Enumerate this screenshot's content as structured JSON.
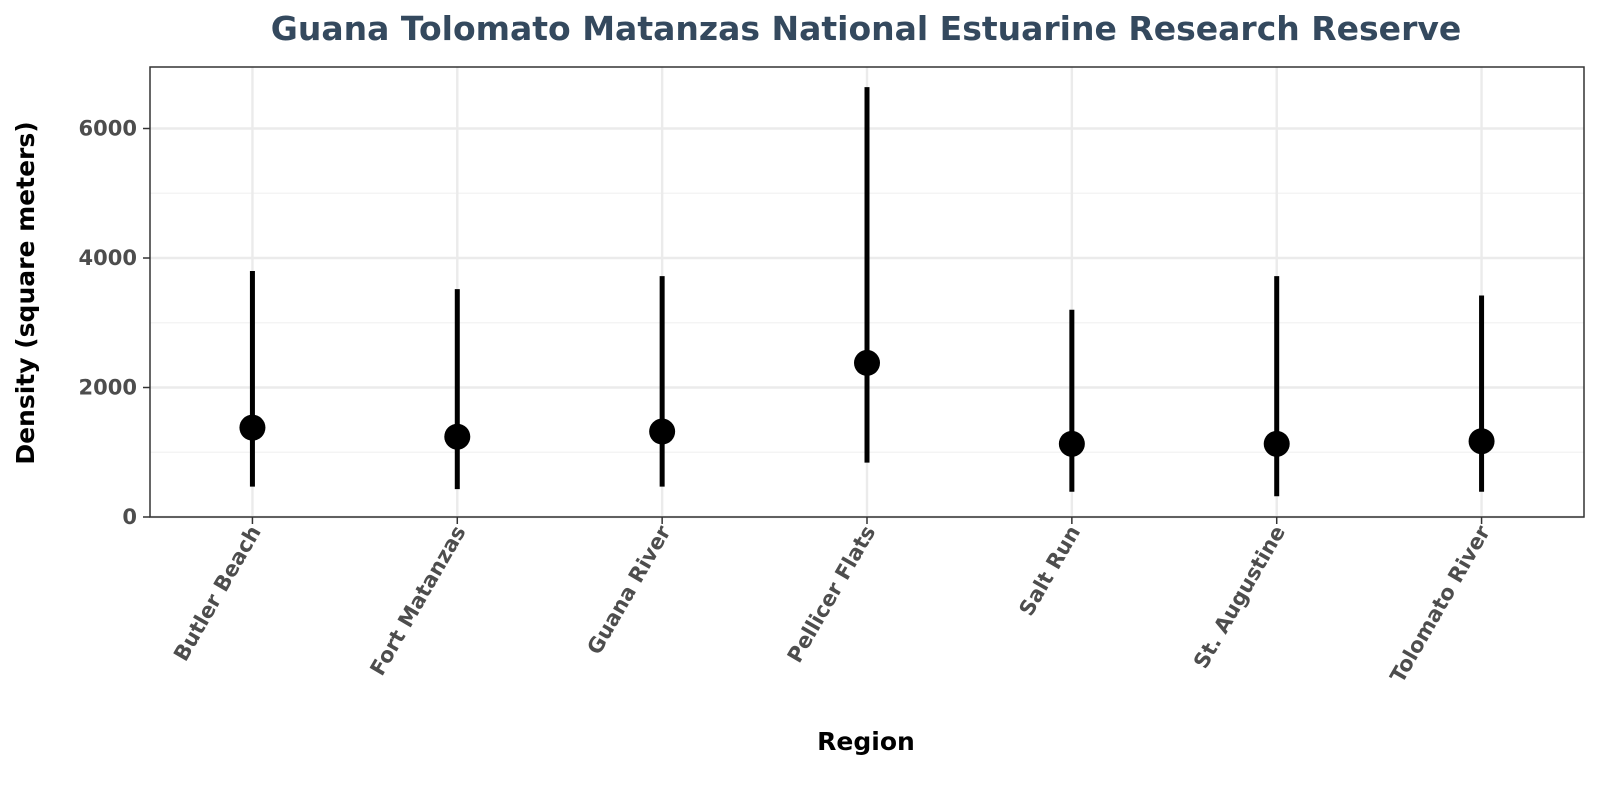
{
  "chart_data": {
    "type": "scatter",
    "title": "Guana Tolomato Matanzas National Estuarine Research Reserve",
    "xlabel": "Region",
    "ylabel": "Density (square meters)",
    "categories": [
      "Butler Beach",
      "Fort Matanzas",
      "Guana River",
      "Pellicer Flats",
      "Salt Run",
      "St. Augustine",
      "Tolomato River"
    ],
    "values": [
      1380,
      1240,
      1320,
      2380,
      1130,
      1130,
      1170
    ],
    "error_low": [
      470,
      430,
      470,
      840,
      390,
      320,
      390
    ],
    "error_high": [
      3800,
      3520,
      3720,
      6640,
      3200,
      3720,
      3420
    ],
    "ylim": [
      0,
      6950
    ],
    "yticks": [
      0,
      2000,
      4000,
      6000
    ],
    "grid": true,
    "legend": "none",
    "colors": {
      "title": "#34495e",
      "points": "#000000",
      "grid": "#ebebeb",
      "panel_border": "#333333",
      "tick_text": "#4d4d4d"
    }
  }
}
